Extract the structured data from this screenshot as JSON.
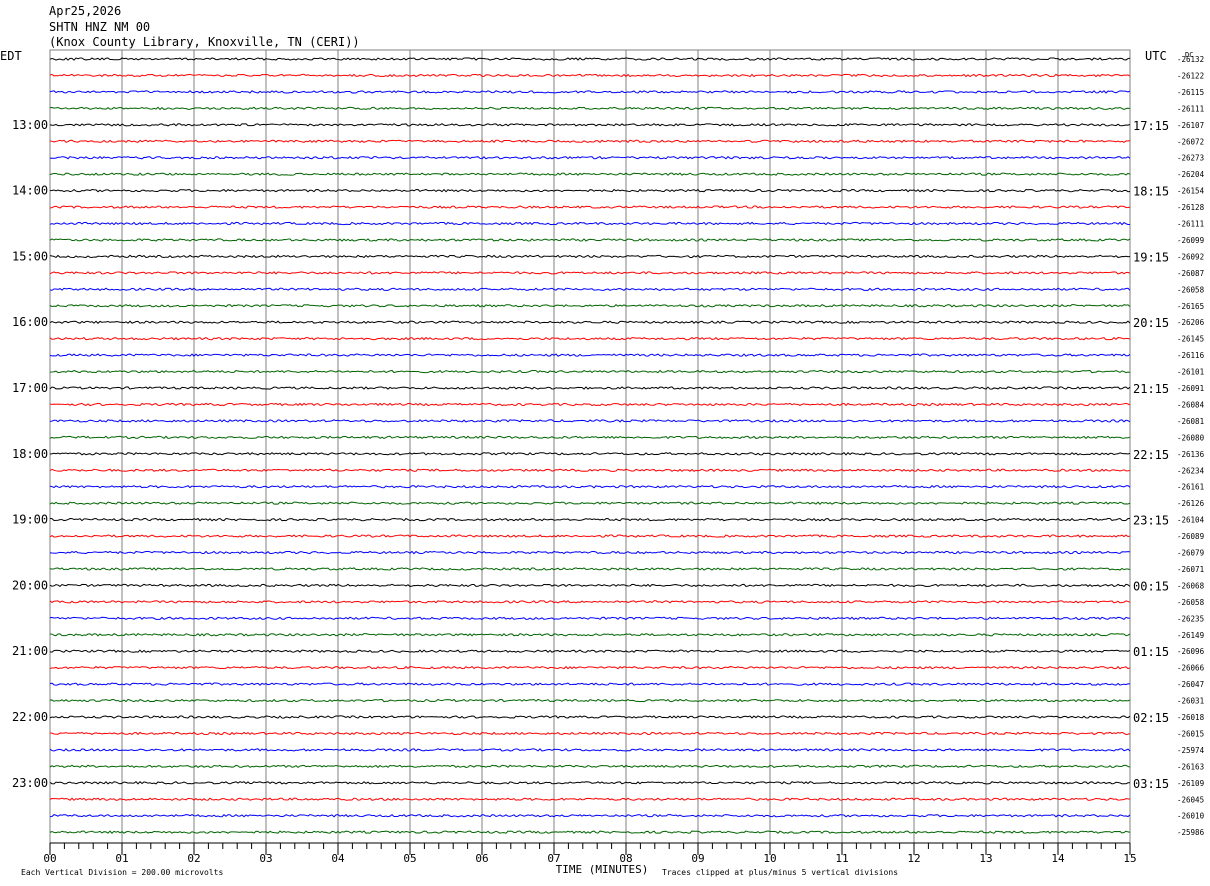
{
  "header": {
    "date": "Apr25,2026",
    "station": "SHTN HNZ NM 00",
    "location": "(Knox County Library, Knoxville, TN (CERI))"
  },
  "left_zone": "EDT",
  "right_zone": "UTC",
  "dc_label": "DC",
  "footer": {
    "scale_note": "Each Vertical Division =  200.00 microvolts",
    "clip_note": "Traces clipped at plus/minus 5 vertical divisions"
  },
  "colors": {
    "cycle": [
      "#000000",
      "#ff0000",
      "#0000ff",
      "#006400"
    ],
    "grid": "#808080"
  },
  "chart_data": {
    "type": "line",
    "xlabel": "TIME (MINUTES)",
    "x_ticks": [
      "00",
      "01",
      "02",
      "03",
      "04",
      "05",
      "06",
      "07",
      "08",
      "09",
      "10",
      "11",
      "12",
      "13",
      "14",
      "15"
    ],
    "xlim": [
      0,
      15
    ],
    "left_hour_labels": [
      "13:00",
      "14:00",
      "15:00",
      "16:00",
      "17:00",
      "18:00",
      "19:00",
      "20:00",
      "21:00",
      "22:00",
      "23:00"
    ],
    "right_hour_labels": [
      "17:15",
      "18:15",
      "19:15",
      "20:15",
      "21:15",
      "22:15",
      "23:15",
      "00:15",
      "01:15",
      "02:15",
      "03:15"
    ],
    "dc_offsets": [
      "-26132",
      "-26122",
      "-26115",
      "-26111",
      "-26107",
      "-26072",
      "-26273",
      "-26204",
      "-26154",
      "-26128",
      "-26111",
      "-26099",
      "-26092",
      "-26087",
      "-26058",
      "-26165",
      "-26206",
      "-26145",
      "-26116",
      "-26101",
      "-26091",
      "-26084",
      "-26081",
      "-26080",
      "-26136",
      "-26234",
      "-26161",
      "-26126",
      "-26104",
      "-26089",
      "-26079",
      "-26071",
      "-26068",
      "-26058",
      "-26235",
      "-26149",
      "-26096",
      "-26066",
      "-26047",
      "-26031",
      "-26018",
      "-26015",
      "-25974",
      "-26163",
      "-26109",
      "-26045",
      "-26010",
      "-25986"
    ]
  }
}
